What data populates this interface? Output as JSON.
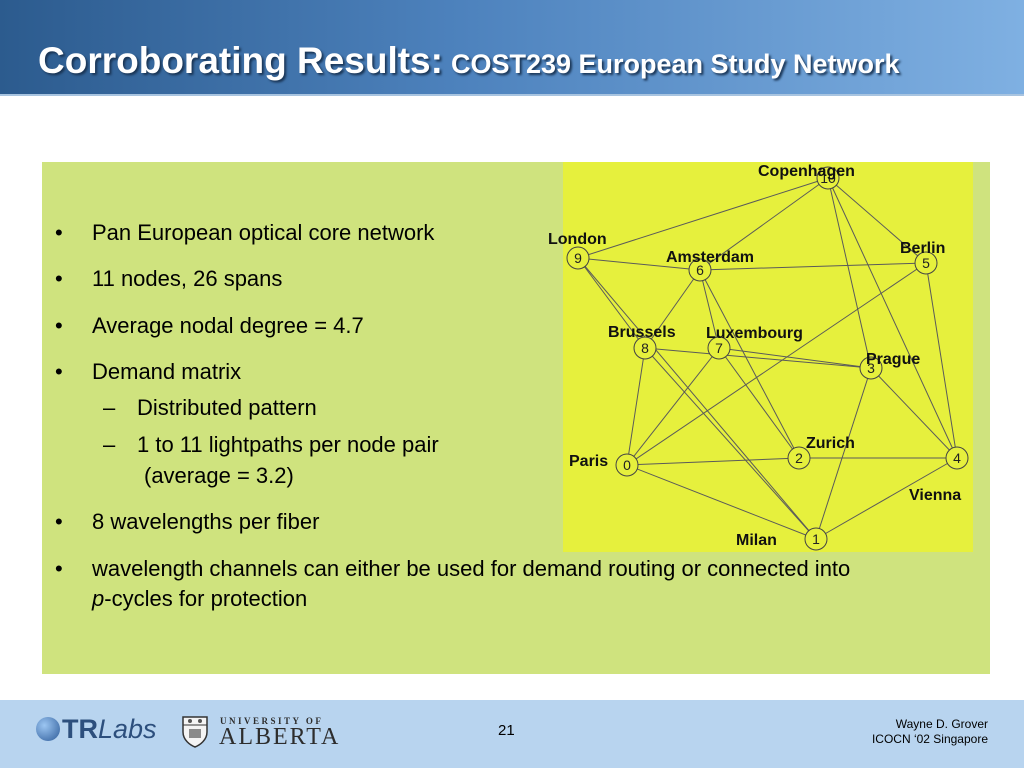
{
  "header": {
    "title_main": "Corroborating Results:",
    "title_sub": "COST239 European Study Network"
  },
  "bullets": [
    {
      "marker": "•",
      "text": "Pan European optical core network"
    },
    {
      "marker": "•",
      "text": "11 nodes, 26 spans"
    },
    {
      "marker": "•",
      "text": "Average nodal degree = 4.7"
    },
    {
      "marker": "•",
      "text": "Demand matrix"
    },
    {
      "marker": "–",
      "text": "Distributed pattern"
    },
    {
      "marker": "–",
      "text": "1 to 11 lightpaths per node pair"
    },
    {
      "marker": "",
      "text": "(average = 3.2)"
    },
    {
      "marker": "•",
      "text": "8 wavelengths per fiber"
    },
    {
      "marker": "•",
      "text": "wavelength channels can either be used for demand routing or connected into"
    },
    {
      "marker": "",
      "text_italic": "p",
      "text": "-cycles for protection"
    }
  ],
  "network": {
    "nodes": [
      {
        "id": "0",
        "city": "Paris"
      },
      {
        "id": "1",
        "city": "Milan"
      },
      {
        "id": "2",
        "city": "Zurich"
      },
      {
        "id": "3",
        "city": "Prague"
      },
      {
        "id": "4",
        "city": "Vienna"
      },
      {
        "id": "5",
        "city": "Berlin"
      },
      {
        "id": "6",
        "city": "Amsterdam"
      },
      {
        "id": "7",
        "city": "Luxembourg"
      },
      {
        "id": "8",
        "city": "Brussels"
      },
      {
        "id": "9",
        "city": "London"
      },
      {
        "id": "10",
        "city": "Copenhagen"
      }
    ],
    "links": [
      [
        "9",
        "10"
      ],
      [
        "9",
        "6"
      ],
      [
        "9",
        "8"
      ],
      [
        "9",
        "1"
      ],
      [
        "10",
        "6"
      ],
      [
        "10",
        "5"
      ],
      [
        "10",
        "3"
      ],
      [
        "10",
        "4"
      ],
      [
        "6",
        "5"
      ],
      [
        "6",
        "8"
      ],
      [
        "6",
        "2"
      ],
      [
        "5",
        "0"
      ],
      [
        "5",
        "4"
      ],
      [
        "8",
        "0"
      ],
      [
        "8",
        "3"
      ],
      [
        "8",
        "1"
      ],
      [
        "7",
        "0"
      ],
      [
        "7",
        "3"
      ],
      [
        "7",
        "6"
      ],
      [
        "7",
        "2"
      ],
      [
        "3",
        "4"
      ],
      [
        "3",
        "1"
      ],
      [
        "0",
        "2"
      ],
      [
        "0",
        "1"
      ],
      [
        "2",
        "4"
      ],
      [
        "4",
        "1"
      ]
    ],
    "colors": {
      "node_fill": "#e6f03d",
      "link": "#5a5a5a",
      "node_border": "#444444"
    }
  },
  "footer": {
    "logo_tr": "TR",
    "logo_labs": "Labs",
    "ua_small": "UNIVERSITY OF",
    "ua_big": "ALBERTA",
    "page_number": "21",
    "author": "Wayne D. Grover",
    "event": "ICOCN ‘02 Singapore"
  }
}
